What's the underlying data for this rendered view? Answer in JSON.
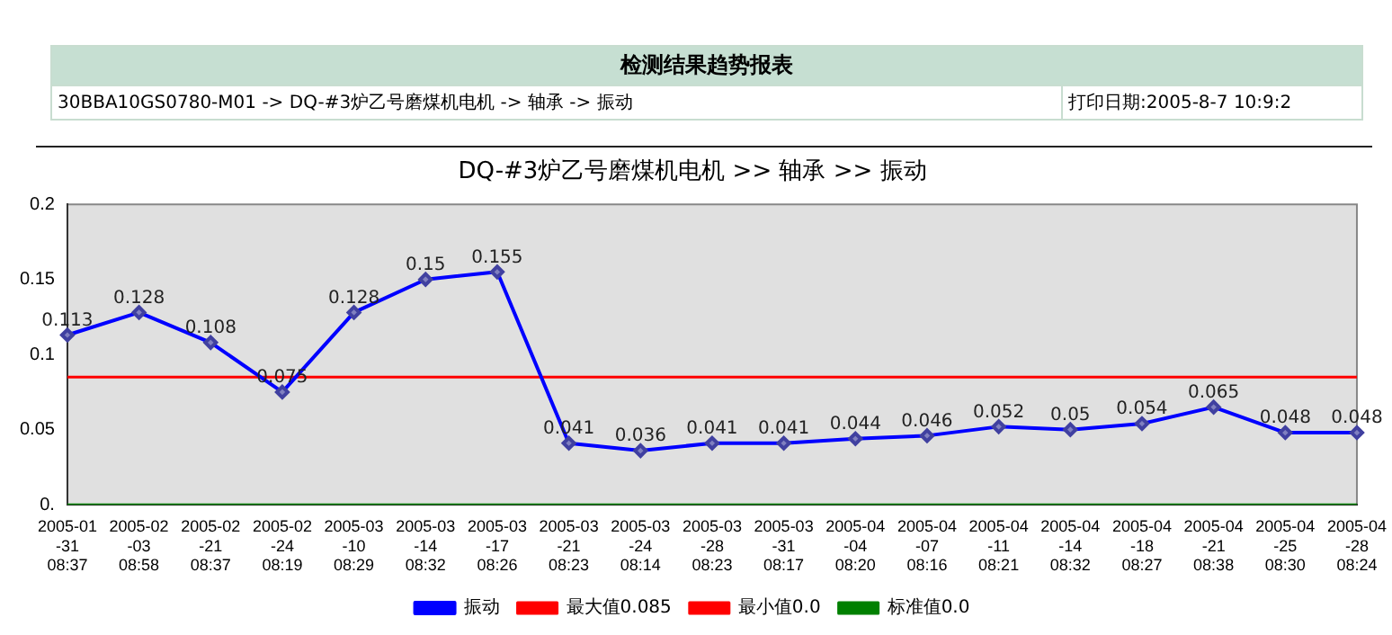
{
  "chart_data": {
    "type": "line",
    "title": "DQ-#3炉乙号磨煤机电机 >> 轴承 >> 振动",
    "annotations": [
      "检测结果趋势报表",
      "30BBA10GS0780-M01 -> DQ-#3炉乙号磨煤机电机 -> 轴承 -> 振动",
      "打印日期:2005-8-7 10:9:2"
    ],
    "categories": [
      "2005-01\n-31\n08:37",
      "2005-02\n-03\n08:58",
      "2005-02\n-21\n08:37",
      "2005-02\n-24\n08:19",
      "2005-03\n-10\n08:29",
      "2005-03\n-14\n08:32",
      "2005-03\n-17\n08:26",
      "2005-03\n-21\n08:23",
      "2005-03\n-24\n08:14",
      "2005-03\n-28\n08:23",
      "2005-03\n-31\n08:17",
      "2005-04\n-04\n08:20",
      "2005-04\n-07\n08:16",
      "2005-04\n-11\n08:21",
      "2005-04\n-14\n08:32",
      "2005-04\n-18\n08:27",
      "2005-04\n-21\n08:38",
      "2005-04\n-25\n08:30",
      "2005-04\n-28\n08:24"
    ],
    "series": [
      {
        "name": "振动",
        "color": "#0000ff",
        "marker": "diamond",
        "values": [
          0.113,
          0.128,
          0.108,
          0.075,
          0.128,
          0.15,
          0.155,
          0.041,
          0.036,
          0.041,
          0.041,
          0.044,
          0.046,
          0.052,
          0.05,
          0.054,
          0.065,
          0.048,
          0.048
        ],
        "value_labels": [
          "0.113",
          "0.128",
          "0.108",
          "0.075",
          "0.128",
          "0.15",
          "0.155",
          "0.041",
          "0.036",
          "0.041",
          "0.041",
          "0.044",
          "0.046",
          "0.052",
          "0.05",
          "0.054",
          "0.065",
          "0.048",
          "0.048"
        ]
      },
      {
        "name": "最大值0.085",
        "color": "#ff0000",
        "values": [
          0.085,
          0.085,
          0.085,
          0.085,
          0.085,
          0.085,
          0.085,
          0.085,
          0.085,
          0.085,
          0.085,
          0.085,
          0.085,
          0.085,
          0.085,
          0.085,
          0.085,
          0.085,
          0.085
        ]
      },
      {
        "name": "最小值0.0",
        "color": "#ff0000",
        "values": [
          null,
          null,
          null,
          null,
          null,
          null,
          null,
          null,
          null,
          null,
          null,
          null,
          null,
          null,
          null,
          null,
          null,
          null,
          null
        ]
      },
      {
        "name": "标准值0.0",
        "color": "#008000",
        "values": [
          0,
          0,
          0,
          0,
          0,
          0,
          0,
          0,
          0,
          0,
          0,
          0,
          0,
          0,
          0,
          0,
          0,
          0,
          0
        ]
      }
    ],
    "ylim": [
      0,
      0.2
    ],
    "yticks": [
      {
        "value": 0,
        "label": "0."
      },
      0.05,
      0.1,
      0.15,
      0.2
    ],
    "grid": false,
    "legend": "bottom"
  }
}
